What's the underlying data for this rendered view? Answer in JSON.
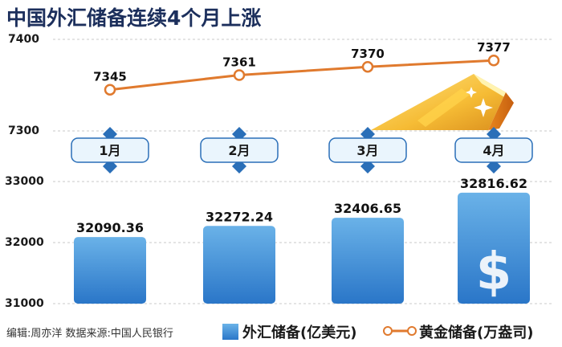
{
  "title": "中国外汇储备连续4个月上涨",
  "credit": "编辑:周亦洋  数据来源:中国人民银行",
  "legend": {
    "bar_label": "外汇储备(亿美元)",
    "line_label": "黄金储备(万盎司)"
  },
  "colors": {
    "title": "#1c2f5c",
    "bar_top": "#6ab2e8",
    "bar_bottom": "#2a76c8",
    "line": "#e07a2e",
    "month_label_bg": "#eaf5fd",
    "month_label_border": "#2a6fb8",
    "gridline": "#c8c8c8"
  },
  "icons": [
    "gold-bar-icon",
    "dollar-sign-icon",
    "diamond-marker-icon"
  ],
  "chart_data": [
    {
      "type": "line",
      "categories": [
        "1月",
        "2月",
        "3月",
        "4月"
      ],
      "series": [
        {
          "name": "黄金储备(万盎司)",
          "values": [
            7345,
            7361,
            7370,
            7377
          ]
        }
      ],
      "yticks": [
        7300,
        7400
      ],
      "grid": true
    },
    {
      "type": "bar",
      "categories": [
        "1月",
        "2月",
        "3月",
        "4月"
      ],
      "series": [
        {
          "name": "外汇储备(亿美元)",
          "values": [
            32090.36,
            32272.24,
            32406.65,
            32816.62
          ]
        }
      ],
      "yticks": [
        31000,
        32000,
        33000
      ],
      "grid": true
    }
  ]
}
